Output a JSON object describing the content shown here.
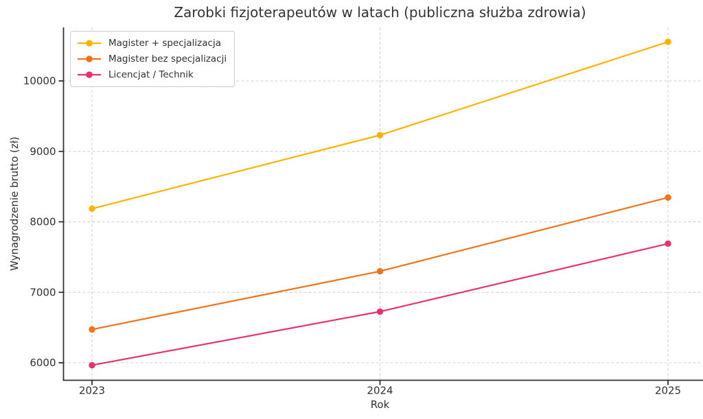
{
  "chart_data": {
    "type": "line",
    "title": "Zarobki fizjoterapeutów w latach (publiczna służba zdrowia)",
    "xlabel": "Rok",
    "ylabel": "Wynagrodzenie brutto (zł)",
    "categories": [
      2023,
      2024,
      2025
    ],
    "x_tick_labels": [
      "2023",
      "2024",
      "2025"
    ],
    "y_ticks": [
      6000,
      7000,
      8000,
      9000,
      10000
    ],
    "y_tick_labels": [
      "6000",
      "7000",
      "8000",
      "9000",
      "10000"
    ],
    "xlim": [
      2022.9,
      2025.12
    ],
    "ylim": [
      5760,
      10790
    ],
    "grid": true,
    "grid_linestyle": "dashed",
    "marker": "circle",
    "legend_position": "upper-left",
    "series": [
      {
        "name": "Magister + specjalizacja",
        "color": "#FFB300",
        "values": [
          8186.53,
          9230.57,
          10554.42
        ]
      },
      {
        "name": "Magister bez specjalizacji",
        "color": "#F2711C",
        "values": [
          6473.07,
          7298.59,
          8345.35
        ]
      },
      {
        "name": "Licencjat / Technik",
        "color": "#E8326E",
        "values": [
          5965.38,
          6726.15,
          7690.82
        ]
      }
    ]
  },
  "colors": {
    "background": "#FFFFFF",
    "grid": "#CFCFCF",
    "axis": "#303030",
    "text": "#303030",
    "legend_border": "#CCCCCC",
    "legend_background": "#FFFFFF"
  }
}
